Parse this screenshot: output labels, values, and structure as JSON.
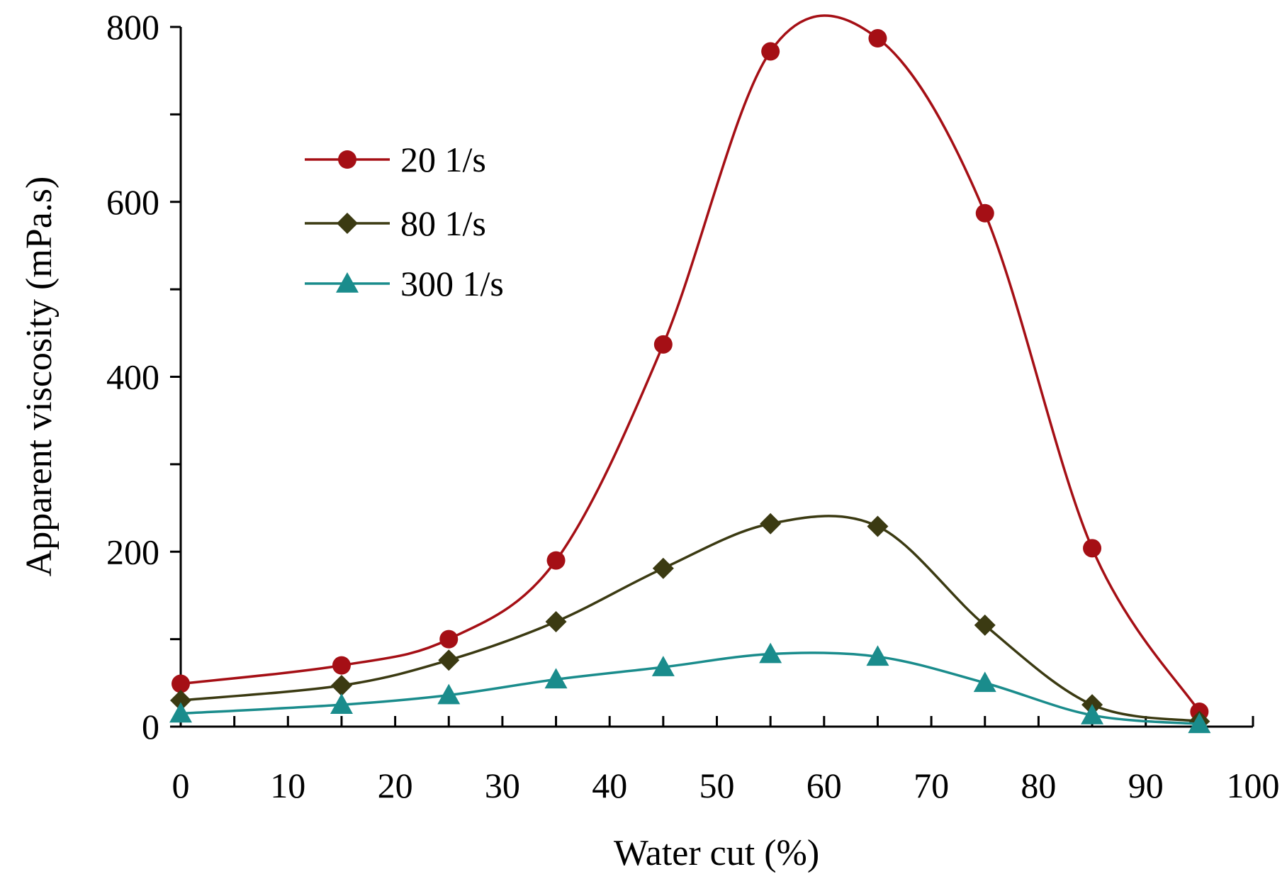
{
  "chart_data": {
    "type": "line",
    "xlabel": "Water cut (%)",
    "ylabel": "Apparent viscosity (mPa.s)",
    "xlim": [
      0,
      100
    ],
    "ylim": [
      0,
      800
    ],
    "x_ticks": [
      "0",
      "10",
      "20",
      "30",
      "40",
      "50",
      "60",
      "70",
      "80",
      "90",
      "100"
    ],
    "y_ticks": [
      "0",
      "200",
      "400",
      "600",
      "800"
    ],
    "grid": false,
    "legend_position": "top-left",
    "x": [
      0,
      15,
      25,
      35,
      45,
      55,
      65,
      75,
      85,
      95
    ],
    "series": [
      {
        "name": "20 1/s",
        "marker": "circle",
        "color": "#a50f15",
        "marker_color": "#a50f15",
        "values": [
          49,
          70,
          100,
          190,
          437,
          772,
          787,
          587,
          204,
          17
        ]
      },
      {
        "name": "80 1/s",
        "marker": "diamond",
        "color": "#3b3a12",
        "marker_color": "#3b3a12",
        "values": [
          30,
          47,
          76,
          120,
          181,
          232,
          229,
          116,
          25,
          6
        ]
      },
      {
        "name": "300 1/s",
        "marker": "triangle",
        "color": "#1a8c8c",
        "marker_color": "#1a8c8c",
        "values": [
          15,
          25,
          36,
          54,
          68,
          83,
          80,
          50,
          13,
          3
        ]
      }
    ]
  }
}
